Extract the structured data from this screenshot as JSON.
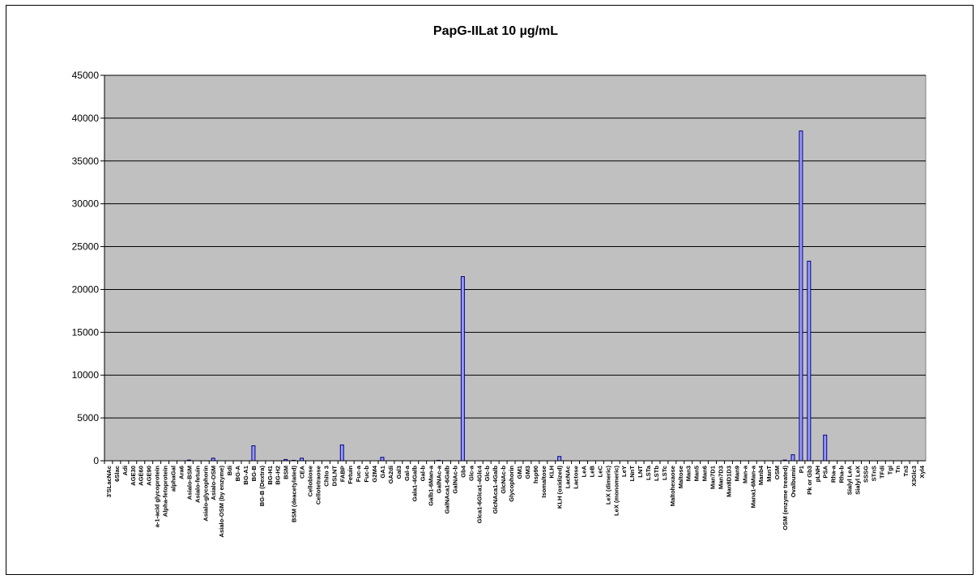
{
  "chart_data": {
    "type": "bar",
    "title": "PapG-IILat 10 µg/mL",
    "xlabel": "",
    "ylabel": "",
    "ylim": [
      0,
      45000
    ],
    "yticks": [
      0,
      5000,
      10000,
      15000,
      20000,
      25000,
      30000,
      35000,
      40000,
      45000
    ],
    "grid": true,
    "legend": "none",
    "colors": {
      "plot_bg": "#c0c0c0",
      "bar_fill": "#9999ff",
      "bar_stroke": "#000080",
      "grid": "#000000"
    },
    "categories": [
      "3'SLacNAc",
      "6Slac",
      "Adi",
      "AGE30",
      "AGE60",
      "AGE90",
      "a-1-acid glycoprotein",
      "Alpha-fetoprotein",
      "alphaGal",
      "Ara6",
      "Asialo-BSM",
      "Asialo-fetuin",
      "Asialo-glycophorin",
      "Asialo-OSM",
      "Asialo-OSM (by enzyme)",
      "Bdi",
      "BG-A",
      "BG-A1",
      "BG-B",
      "BG-B (Dextra)",
      "BG-H1",
      "BG-H2",
      "BSM",
      "BSM (deacetylated)",
      "CEA",
      "Cellobiose",
      "Cellotetraose",
      "Chito 3",
      "DSLNT",
      "FABP",
      "Fetuin",
      "Fuc-a",
      "Fuc-b",
      "G2M4",
      "GA1",
      "GA2di",
      "Gal3",
      "Gal-a",
      "Gala1-4Galb",
      "Gal-b",
      "Galb1-6Man-a",
      "GalNAc-a",
      "GalNAca1-6Galb",
      "GalNAc-b",
      "Gb4",
      "Glc-a",
      "Glca1-6Glca1-4Glc4",
      "Glc-b",
      "GlcNAca1-4Galb",
      "GlcNAc-b",
      "Glycophorin",
      "GM1",
      "GM3",
      "hsp90",
      "Isomaltose",
      "KLH",
      "KLH (oxidized)",
      "LacNAc",
      "Lactose",
      "LeA",
      "LeB",
      "LeC",
      "LeX (dimeric)",
      "LeX (monomeric)",
      "LeY",
      "LNnT",
      "LNT",
      "LSTa",
      "LSTb",
      "LSTc",
      "Maltohexaose",
      "Maltose",
      "Man3",
      "Man5",
      "Man6",
      "Man7D1",
      "Man7D3",
      "Man8D1D3",
      "Man9",
      "Man-a",
      "Mana1-6Man-a",
      "Manb4",
      "ManT",
      "OSM",
      "OSM (enzyme treated)",
      "Ovalbumin",
      "P1",
      "Pk or Gb3",
      "pLNH",
      "PSA",
      "Rha-a",
      "Rha-b",
      "Sialyl LeA",
      "Sialyl LeX",
      "SSSG",
      "STnS",
      "TFdi",
      "Tgi",
      "Tn",
      "Tn3",
      "X3Glc3",
      "Xyl4"
    ],
    "values": [
      0,
      0,
      0,
      0,
      0,
      0,
      0,
      0,
      0,
      0,
      80,
      0,
      0,
      300,
      0,
      0,
      0,
      0,
      1750,
      0,
      0,
      0,
      150,
      50,
      300,
      0,
      0,
      0,
      0,
      1850,
      0,
      0,
      0,
      0,
      400,
      0,
      0,
      0,
      0,
      0,
      0,
      50,
      0,
      0,
      21500,
      0,
      0,
      0,
      0,
      0,
      0,
      0,
      0,
      0,
      0,
      0,
      500,
      0,
      0,
      0,
      0,
      0,
      0,
      0,
      0,
      0,
      0,
      0,
      0,
      0,
      0,
      0,
      0,
      0,
      0,
      0,
      0,
      0,
      0,
      0,
      0,
      0,
      0,
      0,
      80,
      700,
      38500,
      23300,
      0,
      3000,
      0,
      0,
      0,
      0,
      0,
      0,
      0,
      0,
      0,
      0,
      0,
      0
    ]
  }
}
